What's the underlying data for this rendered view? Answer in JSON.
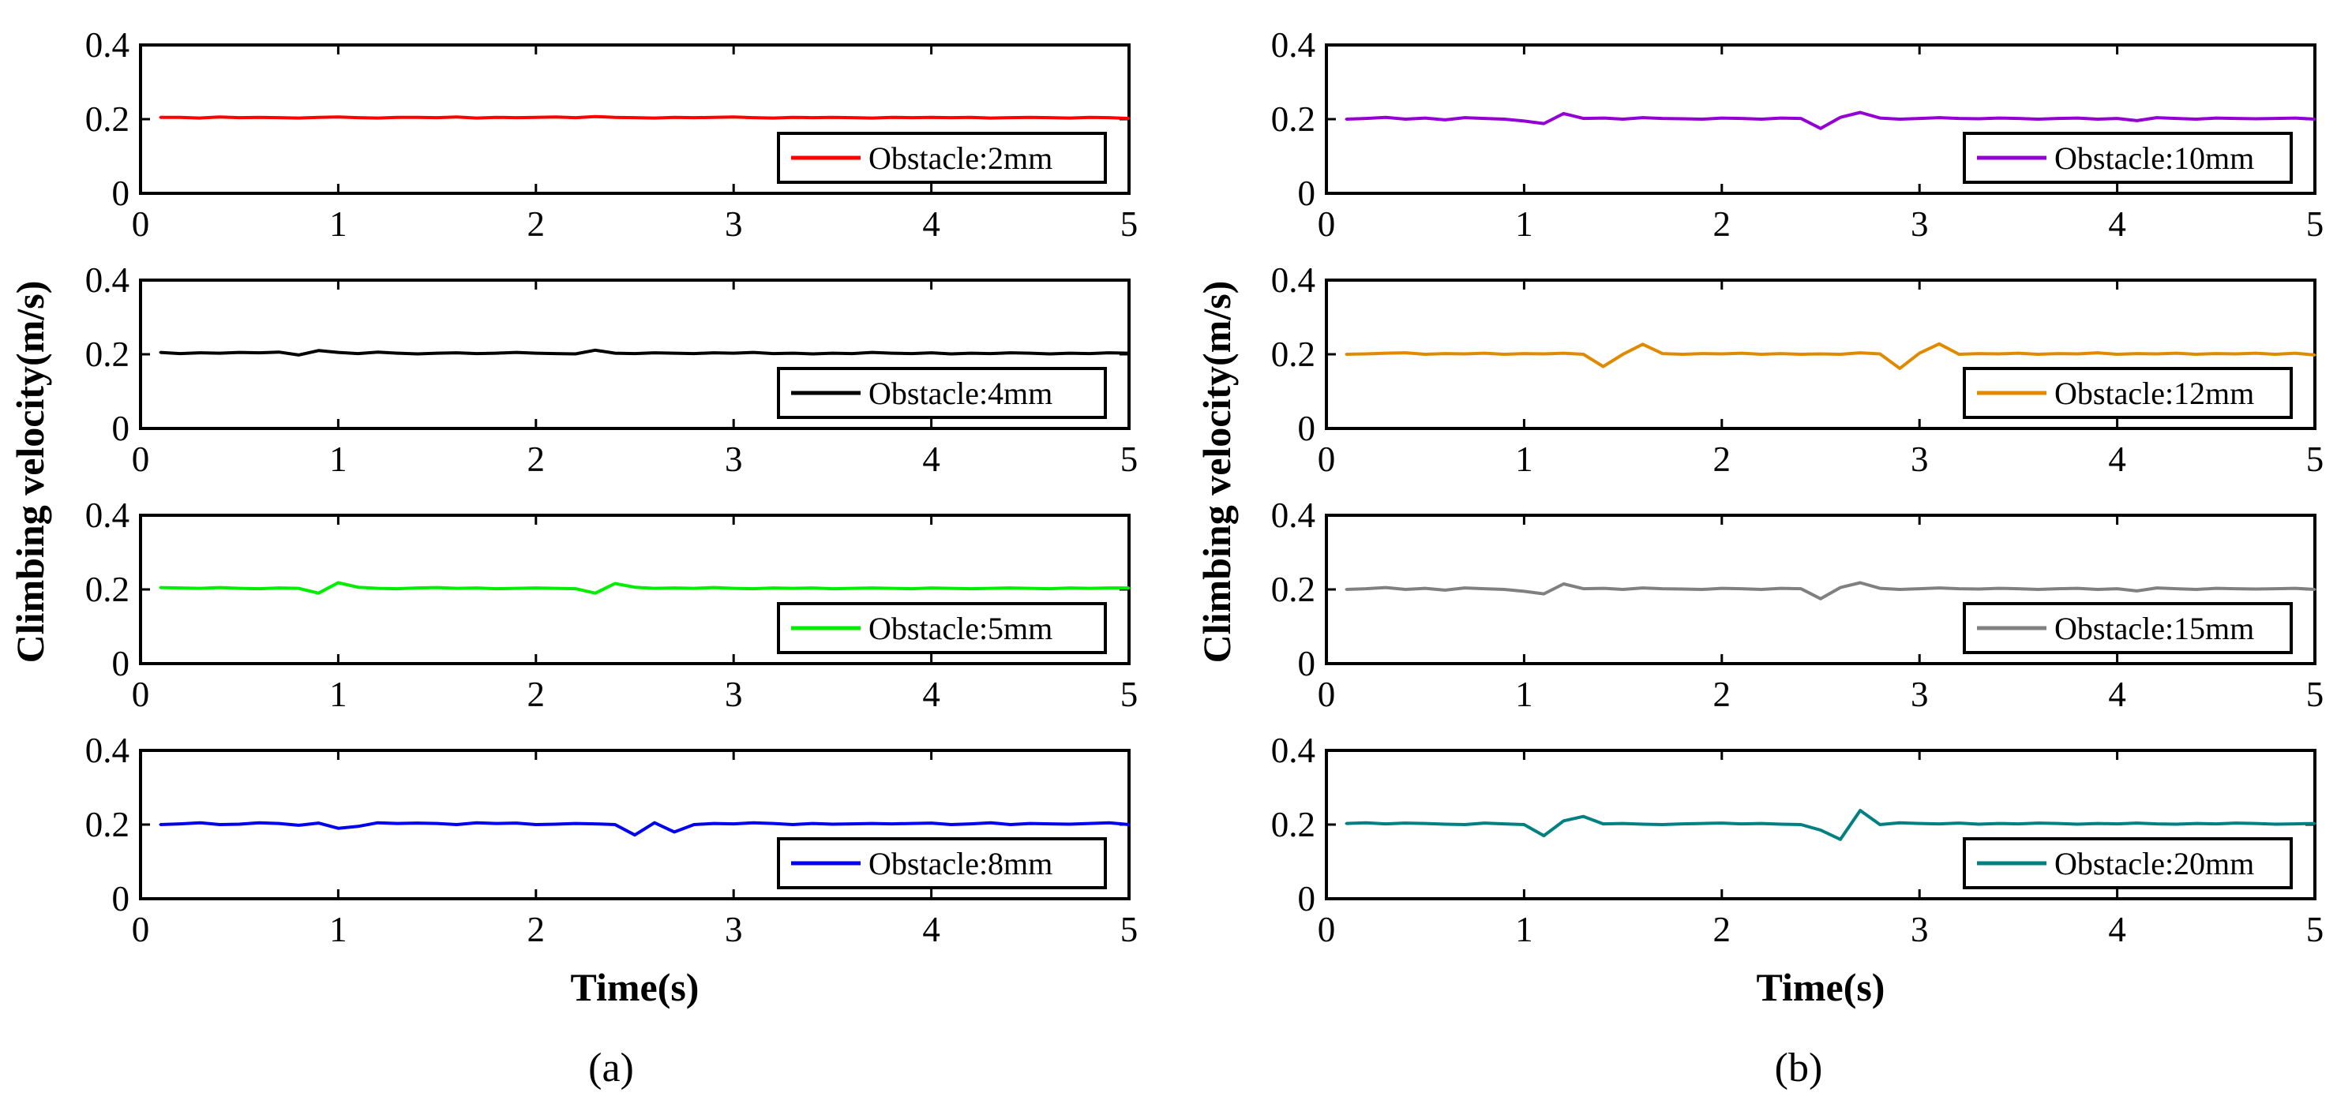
{
  "chart_data": [
    {
      "panel": "(a)",
      "type": "line",
      "xlabel": "Time(s)",
      "ylabel": "Climbing velocity(m/s)",
      "xlim": [
        0,
        5
      ],
      "ylim": [
        0,
        0.4
      ],
      "xticks": [
        "0",
        "1",
        "2",
        "3",
        "4",
        "5"
      ],
      "yticks": [
        "0",
        "0.2",
        "0.4"
      ],
      "legend_position": "bottom-right",
      "subplots": [
        {
          "legend": "Obstacle:2mm",
          "color": "#ff0000",
          "x": [
            0.1,
            0.2,
            0.3,
            0.4,
            0.5,
            0.6,
            0.7,
            0.8,
            0.9,
            1.0,
            1.1,
            1.2,
            1.3,
            1.4,
            1.5,
            1.6,
            1.7,
            1.8,
            1.9,
            2.0,
            2.1,
            2.2,
            2.3,
            2.4,
            2.5,
            2.6,
            2.7,
            2.8,
            2.9,
            3.0,
            3.1,
            3.2,
            3.3,
            3.4,
            3.5,
            3.6,
            3.7,
            3.8,
            3.9,
            4.0,
            4.1,
            4.2,
            4.3,
            4.4,
            4.5,
            4.6,
            4.7,
            4.8,
            4.9,
            5.0
          ],
          "y": [
            0.205,
            0.205,
            0.203,
            0.206,
            0.204,
            0.205,
            0.204,
            0.203,
            0.205,
            0.206,
            0.204,
            0.203,
            0.205,
            0.205,
            0.204,
            0.206,
            0.203,
            0.205,
            0.204,
            0.205,
            0.206,
            0.204,
            0.207,
            0.205,
            0.204,
            0.203,
            0.205,
            0.204,
            0.205,
            0.206,
            0.204,
            0.203,
            0.205,
            0.204,
            0.205,
            0.204,
            0.203,
            0.205,
            0.204,
            0.205,
            0.204,
            0.205,
            0.203,
            0.204,
            0.205,
            0.204,
            0.203,
            0.205,
            0.204,
            0.202
          ]
        },
        {
          "legend": "Obstacle:4mm",
          "color": "#000000",
          "x": [
            0.1,
            0.2,
            0.3,
            0.4,
            0.5,
            0.6,
            0.7,
            0.8,
            0.9,
            1.0,
            1.1,
            1.2,
            1.3,
            1.4,
            1.5,
            1.6,
            1.7,
            1.8,
            1.9,
            2.0,
            2.1,
            2.2,
            2.3,
            2.4,
            2.5,
            2.6,
            2.7,
            2.8,
            2.9,
            3.0,
            3.1,
            3.2,
            3.3,
            3.4,
            3.5,
            3.6,
            3.7,
            3.8,
            3.9,
            4.0,
            4.1,
            4.2,
            4.3,
            4.4,
            4.5,
            4.6,
            4.7,
            4.8,
            4.9,
            5.0
          ],
          "y": [
            0.205,
            0.202,
            0.204,
            0.203,
            0.205,
            0.204,
            0.206,
            0.198,
            0.21,
            0.205,
            0.202,
            0.206,
            0.203,
            0.201,
            0.203,
            0.204,
            0.202,
            0.203,
            0.205,
            0.203,
            0.202,
            0.201,
            0.211,
            0.203,
            0.202,
            0.204,
            0.203,
            0.202,
            0.204,
            0.203,
            0.205,
            0.202,
            0.203,
            0.201,
            0.203,
            0.202,
            0.205,
            0.203,
            0.202,
            0.204,
            0.201,
            0.203,
            0.202,
            0.204,
            0.203,
            0.201,
            0.203,
            0.202,
            0.204,
            0.203
          ]
        },
        {
          "legend": "Obstacle:5mm",
          "color": "#00ee00",
          "x": [
            0.1,
            0.2,
            0.3,
            0.4,
            0.5,
            0.6,
            0.7,
            0.8,
            0.9,
            1.0,
            1.1,
            1.2,
            1.3,
            1.4,
            1.5,
            1.6,
            1.7,
            1.8,
            1.9,
            2.0,
            2.1,
            2.2,
            2.3,
            2.4,
            2.5,
            2.6,
            2.7,
            2.8,
            2.9,
            3.0,
            3.1,
            3.2,
            3.3,
            3.4,
            3.5,
            3.6,
            3.7,
            3.8,
            3.9,
            4.0,
            4.1,
            4.2,
            4.3,
            4.4,
            4.5,
            4.6,
            4.7,
            4.8,
            4.9,
            5.0
          ],
          "y": [
            0.205,
            0.204,
            0.203,
            0.205,
            0.203,
            0.202,
            0.204,
            0.203,
            0.19,
            0.218,
            0.206,
            0.203,
            0.202,
            0.204,
            0.205,
            0.203,
            0.204,
            0.202,
            0.203,
            0.204,
            0.203,
            0.202,
            0.19,
            0.216,
            0.206,
            0.203,
            0.204,
            0.203,
            0.205,
            0.203,
            0.202,
            0.204,
            0.203,
            0.204,
            0.202,
            0.203,
            0.204,
            0.203,
            0.202,
            0.204,
            0.203,
            0.202,
            0.203,
            0.204,
            0.203,
            0.202,
            0.204,
            0.203,
            0.204,
            0.204
          ]
        },
        {
          "legend": "Obstacle:8mm",
          "color": "#0000ee",
          "x": [
            0.1,
            0.2,
            0.3,
            0.4,
            0.5,
            0.6,
            0.7,
            0.8,
            0.9,
            1.0,
            1.1,
            1.2,
            1.3,
            1.4,
            1.5,
            1.6,
            1.7,
            1.8,
            1.9,
            2.0,
            2.1,
            2.2,
            2.3,
            2.4,
            2.5,
            2.6,
            2.7,
            2.8,
            2.9,
            3.0,
            3.1,
            3.2,
            3.3,
            3.4,
            3.5,
            3.6,
            3.7,
            3.8,
            3.9,
            4.0,
            4.1,
            4.2,
            4.3,
            4.4,
            4.5,
            4.6,
            4.7,
            4.8,
            4.9,
            5.0
          ],
          "y": [
            0.2,
            0.202,
            0.205,
            0.2,
            0.201,
            0.205,
            0.203,
            0.198,
            0.204,
            0.19,
            0.195,
            0.205,
            0.203,
            0.204,
            0.203,
            0.2,
            0.205,
            0.203,
            0.204,
            0.2,
            0.201,
            0.203,
            0.202,
            0.2,
            0.172,
            0.205,
            0.18,
            0.2,
            0.203,
            0.202,
            0.205,
            0.203,
            0.2,
            0.203,
            0.201,
            0.202,
            0.203,
            0.202,
            0.203,
            0.204,
            0.2,
            0.202,
            0.205,
            0.2,
            0.203,
            0.202,
            0.201,
            0.203,
            0.205,
            0.2
          ]
        }
      ]
    },
    {
      "panel": "(b)",
      "type": "line",
      "xlabel": "Time(s)",
      "ylabel": "Climbing velocity(m/s)",
      "xlim": [
        0,
        5
      ],
      "ylim": [
        0,
        0.4
      ],
      "xticks": [
        "0",
        "1",
        "2",
        "3",
        "4",
        "5"
      ],
      "yticks": [
        "0",
        "0.2",
        "0.4"
      ],
      "legend_position": "bottom-right",
      "subplots": [
        {
          "legend": "Obstacle:10mm",
          "color": "#9400d3",
          "x": [
            0.1,
            0.2,
            0.3,
            0.4,
            0.5,
            0.6,
            0.7,
            0.8,
            0.9,
            1.0,
            1.1,
            1.2,
            1.3,
            1.4,
            1.5,
            1.6,
            1.7,
            1.8,
            1.9,
            2.0,
            2.1,
            2.2,
            2.3,
            2.4,
            2.5,
            2.6,
            2.7,
            2.8,
            2.9,
            3.0,
            3.1,
            3.2,
            3.3,
            3.4,
            3.5,
            3.6,
            3.7,
            3.8,
            3.9,
            4.0,
            4.1,
            4.2,
            4.3,
            4.4,
            4.5,
            4.6,
            4.7,
            4.8,
            4.9,
            5.0
          ],
          "y": [
            0.2,
            0.202,
            0.205,
            0.2,
            0.203,
            0.198,
            0.204,
            0.202,
            0.2,
            0.195,
            0.188,
            0.215,
            0.202,
            0.203,
            0.2,
            0.204,
            0.202,
            0.201,
            0.2,
            0.203,
            0.202,
            0.2,
            0.203,
            0.202,
            0.175,
            0.205,
            0.218,
            0.203,
            0.2,
            0.202,
            0.204,
            0.202,
            0.201,
            0.203,
            0.202,
            0.2,
            0.202,
            0.203,
            0.2,
            0.202,
            0.196,
            0.204,
            0.202,
            0.2,
            0.203,
            0.202,
            0.201,
            0.202,
            0.203,
            0.2
          ]
        },
        {
          "legend": "Obstacle:12mm",
          "color": "#e08a00",
          "x": [
            0.1,
            0.2,
            0.3,
            0.4,
            0.5,
            0.6,
            0.7,
            0.8,
            0.9,
            1.0,
            1.1,
            1.2,
            1.3,
            1.4,
            1.5,
            1.6,
            1.7,
            1.8,
            1.9,
            2.0,
            2.1,
            2.2,
            2.3,
            2.4,
            2.5,
            2.6,
            2.7,
            2.8,
            2.9,
            3.0,
            3.1,
            3.2,
            3.3,
            3.4,
            3.5,
            3.6,
            3.7,
            3.8,
            3.9,
            4.0,
            4.1,
            4.2,
            4.3,
            4.4,
            4.5,
            4.6,
            4.7,
            4.8,
            4.9,
            5.0
          ],
          "y": [
            0.2,
            0.201,
            0.203,
            0.204,
            0.2,
            0.202,
            0.201,
            0.203,
            0.2,
            0.202,
            0.201,
            0.203,
            0.2,
            0.167,
            0.2,
            0.227,
            0.202,
            0.2,
            0.202,
            0.201,
            0.203,
            0.2,
            0.202,
            0.2,
            0.201,
            0.2,
            0.204,
            0.201,
            0.162,
            0.203,
            0.228,
            0.2,
            0.202,
            0.201,
            0.203,
            0.2,
            0.202,
            0.201,
            0.204,
            0.2,
            0.202,
            0.201,
            0.203,
            0.2,
            0.202,
            0.201,
            0.203,
            0.2,
            0.203,
            0.198
          ]
        },
        {
          "legend": "Obstacle:15mm",
          "color": "#808080",
          "x": [
            0.1,
            0.2,
            0.3,
            0.4,
            0.5,
            0.6,
            0.7,
            0.8,
            0.9,
            1.0,
            1.1,
            1.2,
            1.3,
            1.4,
            1.5,
            1.6,
            1.7,
            1.8,
            1.9,
            2.0,
            2.1,
            2.2,
            2.3,
            2.4,
            2.5,
            2.6,
            2.7,
            2.8,
            2.9,
            3.0,
            3.1,
            3.2,
            3.3,
            3.4,
            3.5,
            3.6,
            3.7,
            3.8,
            3.9,
            4.0,
            4.1,
            4.2,
            4.3,
            4.4,
            4.5,
            4.6,
            4.7,
            4.8,
            4.9,
            5.0
          ],
          "y": [
            0.2,
            0.202,
            0.205,
            0.2,
            0.203,
            0.198,
            0.204,
            0.202,
            0.2,
            0.195,
            0.188,
            0.215,
            0.202,
            0.203,
            0.2,
            0.204,
            0.202,
            0.201,
            0.2,
            0.203,
            0.202,
            0.2,
            0.203,
            0.202,
            0.175,
            0.205,
            0.218,
            0.203,
            0.2,
            0.202,
            0.204,
            0.202,
            0.201,
            0.203,
            0.202,
            0.2,
            0.202,
            0.203,
            0.2,
            0.202,
            0.196,
            0.204,
            0.202,
            0.2,
            0.203,
            0.202,
            0.201,
            0.202,
            0.203,
            0.2
          ]
        },
        {
          "legend": "Obstacle:20mm",
          "color": "#008080",
          "x": [
            0.1,
            0.2,
            0.3,
            0.4,
            0.5,
            0.6,
            0.7,
            0.8,
            0.9,
            1.0,
            1.1,
            1.2,
            1.3,
            1.4,
            1.5,
            1.6,
            1.7,
            1.8,
            1.9,
            2.0,
            2.1,
            2.2,
            2.3,
            2.4,
            2.5,
            2.6,
            2.7,
            2.8,
            2.9,
            3.0,
            3.1,
            3.2,
            3.3,
            3.4,
            3.5,
            3.6,
            3.7,
            3.8,
            3.9,
            4.0,
            4.1,
            4.2,
            4.3,
            4.4,
            4.5,
            4.6,
            4.7,
            4.8,
            4.9,
            5.0
          ],
          "y": [
            0.203,
            0.205,
            0.202,
            0.204,
            0.203,
            0.201,
            0.2,
            0.204,
            0.202,
            0.2,
            0.17,
            0.21,
            0.222,
            0.202,
            0.203,
            0.201,
            0.2,
            0.202,
            0.203,
            0.204,
            0.202,
            0.203,
            0.201,
            0.2,
            0.185,
            0.16,
            0.238,
            0.2,
            0.205,
            0.203,
            0.202,
            0.204,
            0.201,
            0.203,
            0.202,
            0.204,
            0.203,
            0.201,
            0.203,
            0.202,
            0.204,
            0.202,
            0.201,
            0.203,
            0.202,
            0.204,
            0.203,
            0.201,
            0.202,
            0.203
          ]
        }
      ]
    }
  ]
}
